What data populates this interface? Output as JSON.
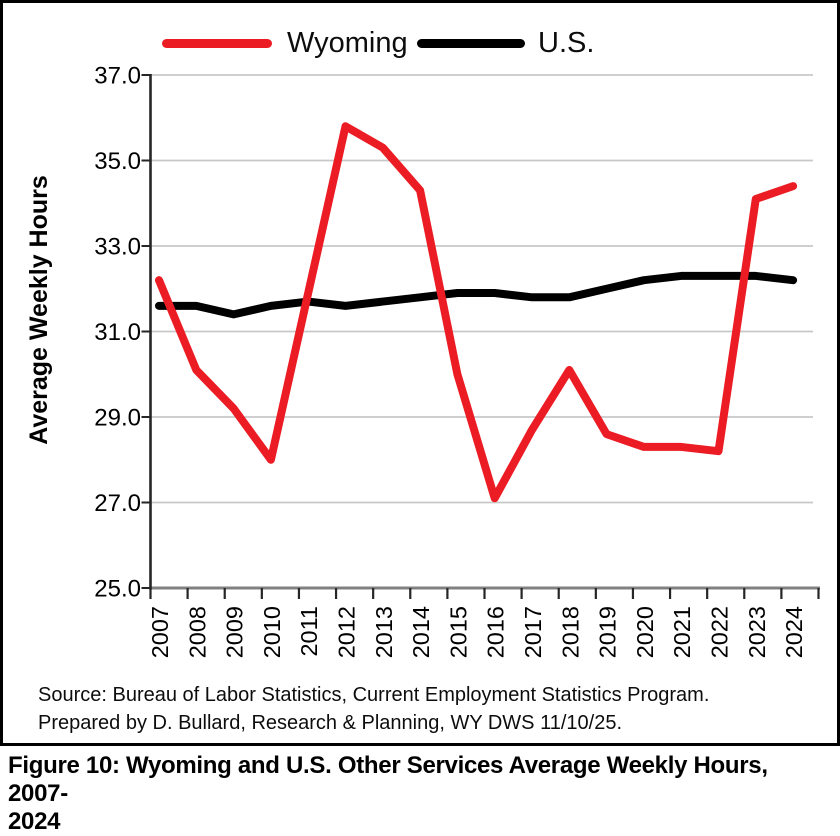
{
  "figure": {
    "caption_line1": "Figure 10: Wyoming and U.S. Other Services Average Weekly Hours, 2007-",
    "caption_line2": "2024"
  },
  "source": {
    "line1": "Source: Bureau of Labor Statistics, Current Employment Statistics Program.",
    "line2": "Prepared by D. Bullard, Research & Planning, WY DWS 11/10/25."
  },
  "legend": [
    {
      "label": "Wyoming",
      "color": "#EC1C24"
    },
    {
      "label": "U.S.",
      "color": "#000000"
    }
  ],
  "chart_data": {
    "type": "line",
    "title": "",
    "xlabel": "",
    "ylabel": "Average Weekly Hours",
    "x": [
      "2007",
      "2008",
      "2009",
      "2010",
      "2011",
      "2012",
      "2013",
      "2014",
      "2015",
      "2016",
      "2017",
      "2018",
      "2019",
      "2020",
      "2021",
      "2022",
      "2023",
      "2024"
    ],
    "series": [
      {
        "name": "Wyoming",
        "color": "#EC1C24",
        "values": [
          32.2,
          30.1,
          29.2,
          28.0,
          31.9,
          35.8,
          35.3,
          34.3,
          30.0,
          27.1,
          28.7,
          30.1,
          28.6,
          28.3,
          28.3,
          28.2,
          34.1,
          34.4
        ]
      },
      {
        "name": "U.S.",
        "color": "#000000",
        "values": [
          31.6,
          31.6,
          31.4,
          31.6,
          31.7,
          31.6,
          31.7,
          31.8,
          31.9,
          31.9,
          31.8,
          31.8,
          32.0,
          32.2,
          32.3,
          32.3,
          32.3,
          32.2
        ]
      }
    ],
    "ylim": [
      25.0,
      37.0
    ],
    "ytick_step": 2.0,
    "y_tick_labels": [
      "37.0",
      "35.0",
      "33.0",
      "31.0",
      "29.0",
      "27.0",
      "25.0"
    ],
    "grid": "horizontal",
    "legend_position": "top"
  },
  "colors": {
    "background": "#FFFFFF",
    "frame_border": "#000000",
    "grid": "#C8C8C8",
    "y_axis": "#262626",
    "x_axis": "#808080",
    "tick": "#262626",
    "tick_label": "#000000"
  }
}
